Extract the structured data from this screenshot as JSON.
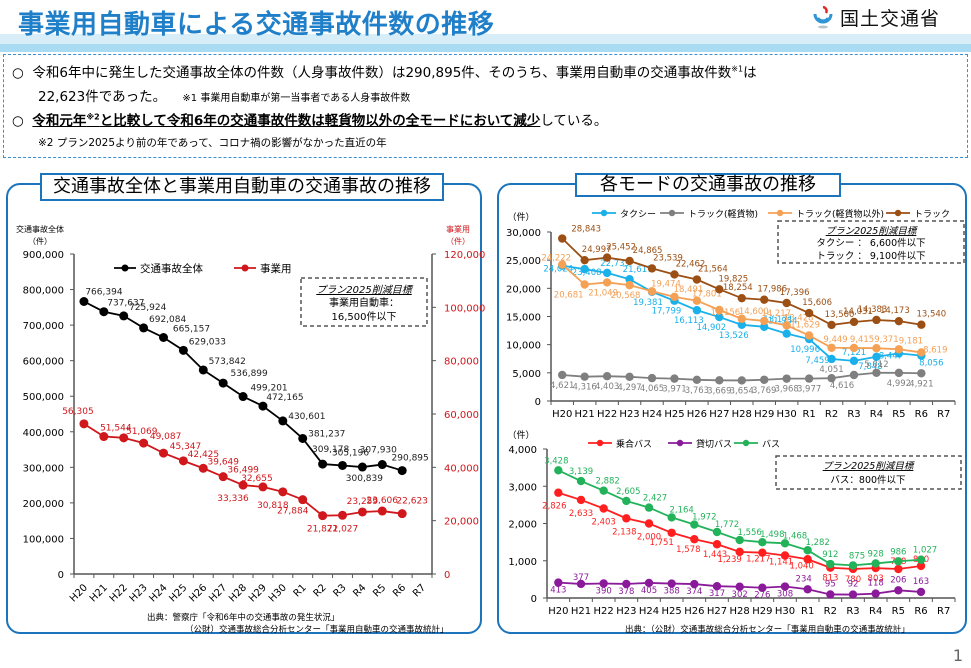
{
  "header": {
    "title": "事業用自動車による交通事故件数の推移",
    "logo_text": "国土交通省",
    "logo_icon": "mlit-logo-icon"
  },
  "summary": {
    "bullet": "○",
    "line1_a": "令和6年中に発生した交通事故全体の件数（人身事故件数）は290,895件、そのうち、事業用自動車の交通事故件数",
    "line1_sup": "※1",
    "line1_b": "は",
    "line2_a": "22,623件であった。",
    "line2_note": "※1  事業用自動車が第一当事者である人身事故件数",
    "line3_bold_a": "令和元年",
    "line3_sup": "※2",
    "line3_bold_b": "と比較して令和6年の交通事故件数は軽貨物以外の全モードにおいて減少",
    "line3_rest": "している。",
    "line4": "※2  プラン2025より前の年であって、コロナ禍の影響がなかった直近の年"
  },
  "page_number": "1",
  "chart_data": [
    {
      "type": "line",
      "title": "交通事故全体と事業用自動車の交通事故の推移",
      "categories": [
        "H20",
        "H21",
        "H22",
        "H23",
        "H24",
        "H25",
        "H26",
        "H27",
        "H28",
        "H29",
        "H30",
        "R1",
        "R2",
        "R3",
        "R4",
        "R5",
        "R6",
        "R7"
      ],
      "ylabel_left": "交通事故全体",
      "ylabel_left_unit": "（件）",
      "ylabel_right": "事業用",
      "ylabel_right_unit": "（件）",
      "ylim_left": [
        0,
        900000
      ],
      "yticks_left": [
        "0",
        "100,000",
        "200,000",
        "300,000",
        "400,000",
        "500,000",
        "600,000",
        "700,000",
        "800,000",
        "900,000"
      ],
      "ylim_right": [
        0,
        120000
      ],
      "yticks_right": [
        "0",
        "20,000",
        "40,000",
        "60,000",
        "80,000",
        "100,000",
        "120,000"
      ],
      "legend_position": "top-left",
      "series": [
        {
          "name": "交通事故全体",
          "color": "#000000",
          "axis": "left",
          "values": [
            766394,
            737637,
            725924,
            692084,
            665157,
            629033,
            573842,
            536899,
            499201,
            472165,
            430601,
            381237,
            309178,
            305196,
            300839,
            307930,
            290895,
            null
          ],
          "labels": [
            "766,394",
            "737,637",
            "725,924",
            "692,084",
            "665,157",
            "629,033",
            "573,842",
            "536,899",
            "499,201",
            "472,165",
            "430,601",
            "381,237",
            "309,178",
            "305,196",
            "300,839",
            "307,930",
            "290,895",
            null
          ]
        },
        {
          "name": "事業用",
          "color": "#d0171c",
          "axis": "right",
          "values": [
            56305,
            51544,
            51069,
            49087,
            45347,
            42425,
            39649,
            36499,
            33336,
            32655,
            30818,
            27884,
            21871,
            22027,
            23259,
            23606,
            22623,
            null
          ],
          "labels": [
            "56,305",
            "51,544",
            "51,069",
            "49,087",
            "45,347",
            "42,425",
            "39,649",
            "36,499",
            "33,336",
            "32,655",
            "30,818",
            "27,884",
            "21,871",
            "22,027",
            "23,259",
            "23,606",
            "22,623",
            null
          ]
        }
      ],
      "target_box": {
        "title": "プラン2025削減目標",
        "lines": [
          "事業用自動車：",
          "16,500件以下"
        ]
      },
      "source": [
        "出典：警察庁「令和6年中の交通事故の発生状況」",
        "（公財）交通事故総合分析センター「事業用自動車の交通事故統計」"
      ]
    },
    {
      "type": "line",
      "title": "各モードの交通事故の推移",
      "categories": [
        "H20",
        "H21",
        "H22",
        "H23",
        "H24",
        "H25",
        "H26",
        "H27",
        "H28",
        "H29",
        "H30",
        "R1",
        "R2",
        "R3",
        "R4",
        "R5",
        "R6",
        "R7"
      ],
      "ylabel": "（件）",
      "ylim": [
        0,
        30000
      ],
      "yticks": [
        "0",
        "5,000",
        "10,000",
        "15,000",
        "20,000",
        "25,000",
        "30,000"
      ],
      "legend_position": "top",
      "series": [
        {
          "name": "タクシー",
          "color": "#1ab0ea",
          "values": [
            24024,
            23408,
            22735,
            21617,
            19381,
            17799,
            16113,
            14902,
            13526,
            13171,
            11954,
            10996,
            7459,
            7121,
            7848,
            8447,
            8056,
            null
          ]
        },
        {
          "name": "トラック(軽貨物)",
          "color": "#7f7f7f",
          "values": [
            4621,
            4316,
            4403,
            4297,
            4065,
            3971,
            3763,
            3669,
            3654,
            3769,
            3968,
            3977,
            4051,
            4616,
            5012,
            4992,
            4921,
            null
          ]
        },
        {
          "name": "トラック(軽貨物以外)",
          "color": "#f4a055",
          "values": [
            24222,
            20681,
            21049,
            20568,
            19474,
            18491,
            17801,
            16156,
            14600,
            14217,
            13428,
            11629,
            9449,
            9415,
            9371,
            9181,
            8619,
            null
          ]
        },
        {
          "name": "トラック",
          "color": "#9b4f14",
          "values": [
            28843,
            24997,
            25452,
            24865,
            23539,
            22462,
            21564,
            19825,
            18254,
            17986,
            17396,
            15606,
            13500,
            14031,
            14383,
            14173,
            13540,
            null
          ]
        }
      ],
      "target_box": {
        "title": "プラン2025削減目標",
        "lines": [
          "タクシー ： 6,600件以下",
          "トラック ： 9,100件以下"
        ]
      }
    },
    {
      "type": "line",
      "title": "",
      "categories": [
        "H20",
        "H21",
        "H22",
        "H23",
        "H24",
        "H25",
        "H26",
        "H27",
        "H28",
        "H29",
        "H30",
        "R1",
        "R2",
        "R3",
        "R4",
        "R5",
        "R6",
        "R7"
      ],
      "ylabel": "（件）",
      "ylim": [
        0,
        4000
      ],
      "yticks": [
        "0",
        "1,000",
        "2,000",
        "3,000",
        "4,000"
      ],
      "legend_position": "top",
      "series": [
        {
          "name": "乗合バス",
          "color": "#ff1f1f",
          "values": [
            2826,
            2633,
            2403,
            2138,
            2000,
            1751,
            1578,
            1443,
            1239,
            1217,
            1141,
            1040,
            813,
            780,
            803,
            778,
            860,
            null
          ]
        },
        {
          "name": "貸切バス",
          "color": "#8b1a9b",
          "values": [
            413,
            377,
            390,
            378,
            405,
            388,
            374,
            317,
            302,
            276,
            308,
            234,
            95,
            92,
            118,
            206,
            163,
            null
          ]
        },
        {
          "name": "バス",
          "color": "#22b35a",
          "values": [
            3428,
            3139,
            2882,
            2605,
            2427,
            2164,
            1972,
            1772,
            1556,
            1498,
            1468,
            1282,
            912,
            875,
            928,
            986,
            1027,
            null
          ]
        }
      ],
      "target_box": {
        "title": "プラン2025削減目標",
        "lines": [
          "バス：800件以下"
        ]
      },
      "source": [
        "出典：（公財）交通事故総合分析センター「事業用自動車の交通事故統計」"
      ]
    }
  ]
}
